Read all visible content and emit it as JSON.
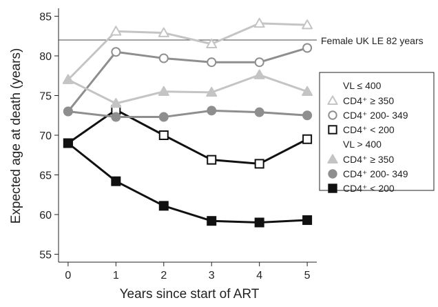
{
  "chart_data": {
    "type": "line",
    "xlabel": "Years since start of ART",
    "ylabel": "Expected age at death (years)",
    "xlim": [
      -0.2,
      5.2
    ],
    "ylim": [
      54,
      86
    ],
    "x_ticks": [
      0,
      1,
      2,
      3,
      4,
      5
    ],
    "y_ticks": [
      55,
      60,
      65,
      70,
      75,
      80,
      85
    ],
    "reference_line": {
      "y": 82,
      "label": "Female UK LE 82 years"
    },
    "legend": {
      "position": "right",
      "groups": [
        {
          "label": "VL ≤ 400",
          "entries": [
            {
              "series": 0,
              "label": "CD4⁺ ≥ 350"
            },
            {
              "series": 1,
              "label": "CD4⁺ 200- 349"
            },
            {
              "series": 2,
              "label": "CD4⁺ < 200"
            }
          ]
        },
        {
          "label": "VL > 400",
          "entries": [
            {
              "series": 3,
              "label": "CD4⁺ ≥ 350"
            },
            {
              "series": 4,
              "label": "CD4⁺ 200- 349"
            },
            {
              "series": 5,
              "label": "CD4⁺ < 200"
            }
          ]
        }
      ]
    },
    "x": [
      0,
      1,
      2,
      3,
      4,
      5
    ],
    "series": [
      {
        "values": [
          77.0,
          83.1,
          82.9,
          81.5,
          84.1,
          83.9
        ],
        "marker": "triangle",
        "filled": false,
        "color": "#c4c4c4"
      },
      {
        "values": [
          73.0,
          80.5,
          79.7,
          79.2,
          79.2,
          81.0
        ],
        "marker": "circle",
        "filled": false,
        "color": "#8e8e8e"
      },
      {
        "values": [
          69.0,
          73.2,
          70.0,
          66.9,
          66.4,
          69.5
        ],
        "marker": "square",
        "filled": false,
        "color": "#111111"
      },
      {
        "values": [
          77.0,
          74.0,
          75.5,
          75.4,
          77.6,
          75.5
        ],
        "marker": "triangle",
        "filled": true,
        "color": "#c4c4c4"
      },
      {
        "values": [
          73.0,
          72.3,
          72.3,
          73.1,
          72.9,
          72.5
        ],
        "marker": "circle",
        "filled": true,
        "color": "#8e8e8e"
      },
      {
        "values": [
          69.0,
          64.2,
          61.1,
          59.2,
          59.0,
          59.3
        ],
        "marker": "square",
        "filled": true,
        "color": "#111111"
      }
    ]
  }
}
